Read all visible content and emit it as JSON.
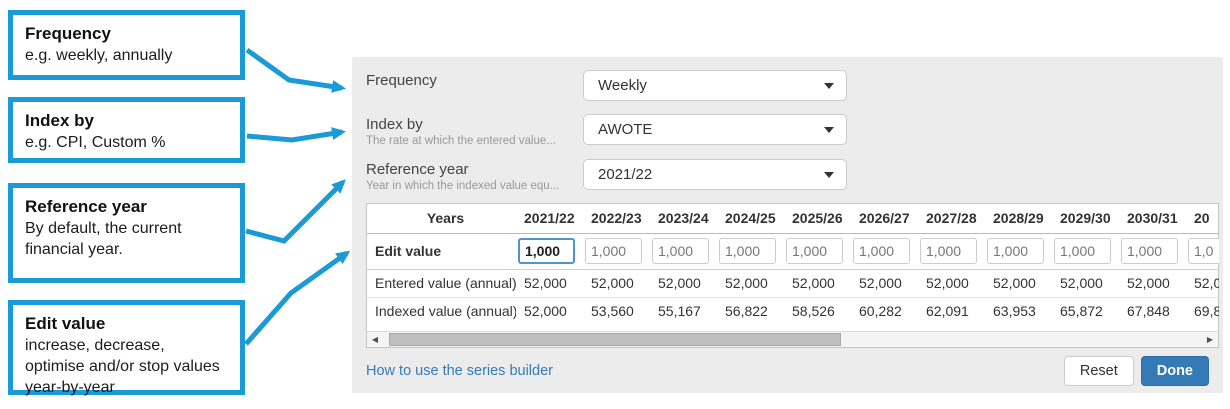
{
  "colors": {
    "accent": "#1a9ad7",
    "primary": "#337ab7",
    "panel_bg": "#ececec"
  },
  "annotations": [
    {
      "title": "Frequency",
      "body": "e.g. weekly, annually"
    },
    {
      "title": "Index by",
      "body": "e.g. CPI, Custom %"
    },
    {
      "title": "Reference year",
      "body": "By default, the current financial year."
    },
    {
      "title": "Edit value",
      "body": "increase, decrease, optimise and/or stop values year-by-year"
    }
  ],
  "panel": {
    "fields": [
      {
        "label": "Frequency",
        "helper": "",
        "value": "Weekly"
      },
      {
        "label": "Index by",
        "helper": "The rate at which the entered value...",
        "value": "AWOTE"
      },
      {
        "label": "Reference year",
        "helper": "Year in which the indexed value equ...",
        "value": "2021/22"
      }
    ],
    "table": {
      "header_label": "Years",
      "years": [
        "2021/22",
        "2022/23",
        "2023/24",
        "2024/25",
        "2025/26",
        "2026/27",
        "2027/28",
        "2028/29",
        "2029/30",
        "2030/31"
      ],
      "edit_row": {
        "label": "Edit value",
        "values": [
          "1,000",
          "1,000",
          "1,000",
          "1,000",
          "1,000",
          "1,000",
          "1,000",
          "1,000",
          "1,000",
          "1,000"
        ]
      },
      "entered_row": {
        "label": "Entered value (annual)",
        "values": [
          "52,000",
          "52,000",
          "52,000",
          "52,000",
          "52,000",
          "52,000",
          "52,000",
          "52,000",
          "52,000",
          "52,000"
        ]
      },
      "indexed_row": {
        "label": "Indexed value (annual)",
        "values": [
          "52,000",
          "53,560",
          "55,167",
          "56,822",
          "58,526",
          "60,282",
          "62,091",
          "63,953",
          "65,872",
          "67,848"
        ]
      },
      "partial_column": {
        "year": "20",
        "edit": "1,0",
        "entered": "52,0",
        "indexed": "69,8"
      }
    },
    "footer": {
      "link": "How to use the series builder",
      "reset": "Reset",
      "done": "Done"
    }
  }
}
